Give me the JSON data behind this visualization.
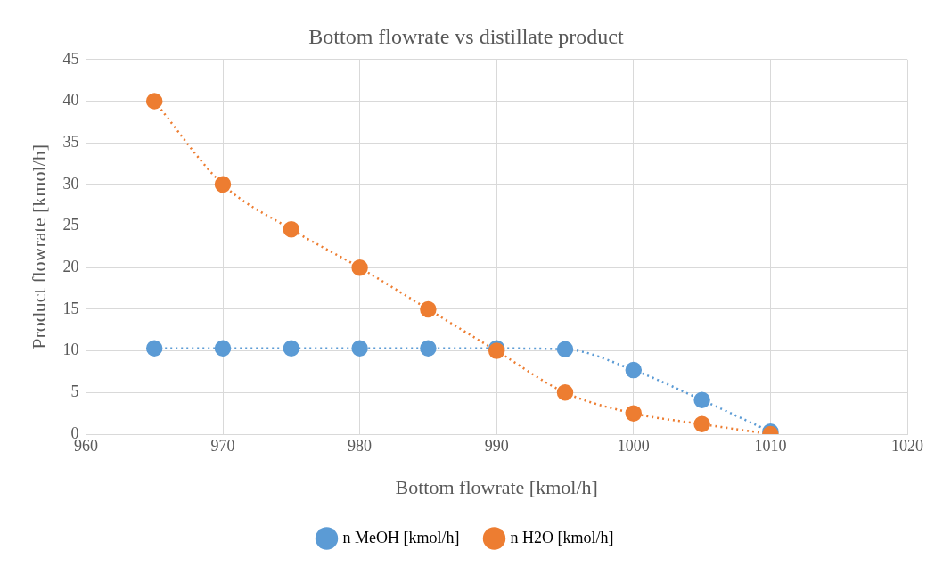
{
  "chart_data": {
    "type": "line",
    "title": "Bottom flowrate vs distillate product",
    "xlabel": "Bottom flowrate [kmol/h]",
    "ylabel": "Product flowrate [kmol/h]",
    "x": [
      965,
      970,
      975,
      980,
      985,
      990,
      995,
      1000,
      1005,
      1010
    ],
    "series": [
      {
        "name": "n MeOH [kmol/h]",
        "color": "#5b9bd5",
        "values": [
          10.3,
          10.3,
          10.3,
          10.3,
          10.3,
          10.3,
          10.2,
          7.7,
          4.1,
          0.3
        ]
      },
      {
        "name": "n H2O [kmol/h]",
        "color": "#ed7d31",
        "values": [
          40,
          30,
          24.6,
          20,
          15,
          10,
          5,
          2.5,
          1.2,
          0
        ]
      }
    ],
    "xlim": [
      960,
      1020
    ],
    "xticks": [
      960,
      970,
      980,
      990,
      1000,
      1010,
      1020
    ],
    "ylim": [
      0,
      45
    ],
    "yticks": [
      0,
      5,
      10,
      15,
      20,
      25,
      30,
      35,
      40,
      45
    ],
    "grid": true,
    "legend": "bottom",
    "marker": "circle",
    "line_style": "dotted"
  }
}
